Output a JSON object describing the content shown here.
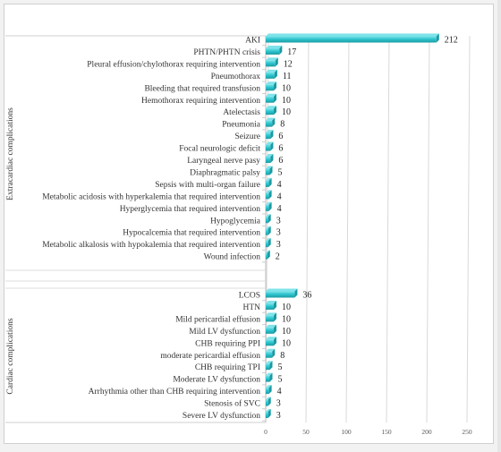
{
  "colors": {
    "bar_fill": "#2fc6cf",
    "bar_dark": "#1a9aa3",
    "bar_light": "#7ee3ea",
    "grid": "#d9d9d9"
  },
  "chart_data": {
    "type": "bar",
    "orientation": "horizontal",
    "title": "",
    "xlabel": "",
    "ylabel": "",
    "xlim": [
      0,
      250
    ],
    "xticks": [
      "0",
      "50",
      "100",
      "150",
      "200",
      "250"
    ],
    "grid": true,
    "legend": "none",
    "groups": [
      {
        "name": "Extracardiac complications",
        "categories": [
          "AKI",
          "PHTN/PHTN crisis",
          "Pleural effusion/chylothorax requiring intervention",
          "Pneumothorax",
          "Bleeding that required transfusion",
          "Hemothorax requiring intervention",
          "Atelectasis",
          "Pneumonia",
          "Seizure",
          "Focal neurologic deficit",
          "Laryngeal nerve pasy",
          "Diaphragmatic palsy",
          "Sepsis with multi-organ failure",
          "Metabolic acidosis with hyperkalemia that required intervention",
          "Hyperglycemia that required intervention",
          "Hypoglycemia",
          "Hypocalcemia that required intervention",
          "Metabolic alkalosis with hypokalemia that required intervention",
          "Wound infection"
        ],
        "values": [
          212,
          17,
          12,
          11,
          10,
          10,
          10,
          8,
          6,
          6,
          6,
          5,
          4,
          4,
          4,
          3,
          3,
          3,
          2
        ]
      },
      {
        "name": "Cardiac complications",
        "categories": [
          "LCOS",
          "HTN",
          "Mild pericardial effusion",
          "Mild LV dysfunction",
          "CHB requiring PPI",
          "moderate pericardial effusion",
          "CHB requiring TPI",
          "Moderate LV dysfunction",
          "Arrhythmia other than CHB requiring intervention",
          "Stenosis of SVC",
          "Severe LV dysfunction"
        ],
        "values": [
          36,
          10,
          10,
          10,
          10,
          8,
          5,
          5,
          4,
          3,
          3
        ]
      }
    ]
  }
}
